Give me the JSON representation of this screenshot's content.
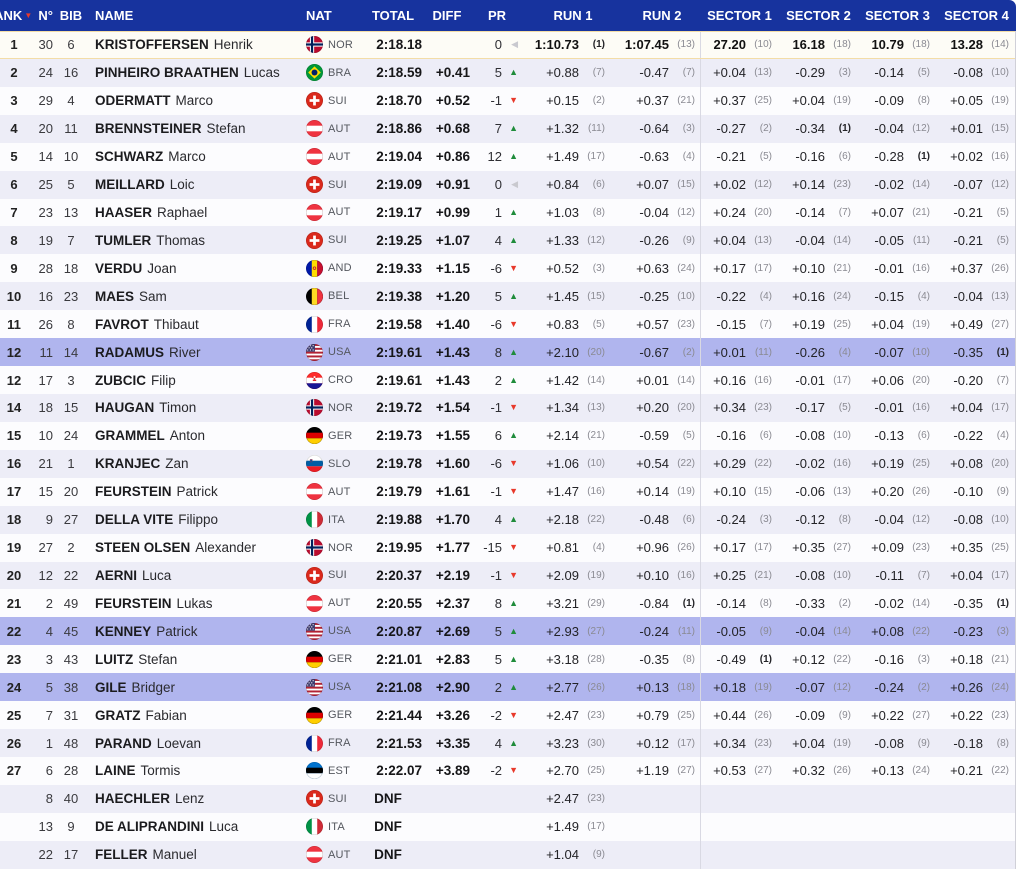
{
  "colors": {
    "header_bg": "#17339e",
    "header_text": "#ffffff",
    "row_even": "#ededf7",
    "row_odd": "#fcfcfe",
    "leader_bg": "#fdfcf6",
    "leader_border": "#f3dda7",
    "highlight_row": "#b0b5ee",
    "divider": "#d9d9e3",
    "arrow_up_green": "#1f8c3b",
    "arrow_down_red": "#e8392b",
    "arrow_same_grey": "#c9c9cf"
  },
  "header": {
    "rank": "RANK",
    "sort_icon": "▼",
    "n": "N°",
    "bib": "BIB",
    "name": "NAME",
    "nat": "NAT",
    "total": "TOTAL",
    "diff": "DIFF",
    "pr": "PR",
    "run1": "RUN 1",
    "run2": "RUN 2",
    "sector1": "SECTOR 1",
    "sector2": "SECTOR 2",
    "sector3": "SECTOR 3",
    "sector4": "SECTOR 4"
  },
  "pr_icons": {
    "up": "▲",
    "down": "▼",
    "same": "◀"
  },
  "rows": [
    {
      "rank": "1",
      "n": "30",
      "bib": "6",
      "surname": "KRISTOFFERSEN",
      "given": "Henrik",
      "nat": "NOR",
      "total": "2:18.18",
      "diff": "",
      "pr": "0",
      "pr_dir": "same",
      "leader": true,
      "cells": [
        [
          "1:10.73",
          "1"
        ],
        [
          "1:07.45",
          "13"
        ],
        [
          "27.20",
          "10"
        ],
        [
          "16.18",
          "18"
        ],
        [
          "10.79",
          "18"
        ],
        [
          "13.28",
          "14"
        ]
      ]
    },
    {
      "rank": "2",
      "n": "24",
      "bib": "16",
      "surname": "PINHEIRO BRAATHEN",
      "given": "Lucas",
      "nat": "BRA",
      "total": "2:18.59",
      "diff": "+0.41",
      "pr": "5",
      "pr_dir": "up",
      "cells": [
        [
          "+0.88",
          "7"
        ],
        [
          "-0.47",
          "7"
        ],
        [
          "+0.04",
          "13"
        ],
        [
          "-0.29",
          "3"
        ],
        [
          "-0.14",
          "5"
        ],
        [
          "-0.08",
          "10"
        ]
      ]
    },
    {
      "rank": "3",
      "n": "29",
      "bib": "4",
      "surname": "ODERMATT",
      "given": "Marco",
      "nat": "SUI",
      "total": "2:18.70",
      "diff": "+0.52",
      "pr": "-1",
      "pr_dir": "down",
      "cells": [
        [
          "+0.15",
          "2"
        ],
        [
          "+0.37",
          "21"
        ],
        [
          "+0.37",
          "25"
        ],
        [
          "+0.04",
          "19"
        ],
        [
          "-0.09",
          "8"
        ],
        [
          "+0.05",
          "19"
        ]
      ]
    },
    {
      "rank": "4",
      "n": "20",
      "bib": "11",
      "surname": "BRENNSTEINER",
      "given": "Stefan",
      "nat": "AUT",
      "total": "2:18.86",
      "diff": "+0.68",
      "pr": "7",
      "pr_dir": "up",
      "cells": [
        [
          "+1.32",
          "11"
        ],
        [
          "-0.64",
          "3"
        ],
        [
          "-0.27",
          "2"
        ],
        [
          "-0.34",
          "1"
        ],
        [
          "-0.04",
          "12"
        ],
        [
          "+0.01",
          "15"
        ]
      ]
    },
    {
      "rank": "5",
      "n": "14",
      "bib": "10",
      "surname": "SCHWARZ",
      "given": "Marco",
      "nat": "AUT",
      "total": "2:19.04",
      "diff": "+0.86",
      "pr": "12",
      "pr_dir": "up",
      "cells": [
        [
          "+1.49",
          "17"
        ],
        [
          "-0.63",
          "4"
        ],
        [
          "-0.21",
          "5"
        ],
        [
          "-0.16",
          "6"
        ],
        [
          "-0.28",
          "1"
        ],
        [
          "+0.02",
          "16"
        ]
      ]
    },
    {
      "rank": "6",
      "n": "25",
      "bib": "5",
      "surname": "MEILLARD",
      "given": "Loic",
      "nat": "SUI",
      "total": "2:19.09",
      "diff": "+0.91",
      "pr": "0",
      "pr_dir": "same",
      "cells": [
        [
          "+0.84",
          "6"
        ],
        [
          "+0.07",
          "15"
        ],
        [
          "+0.02",
          "12"
        ],
        [
          "+0.14",
          "23"
        ],
        [
          "-0.02",
          "14"
        ],
        [
          "-0.07",
          "12"
        ]
      ]
    },
    {
      "rank": "7",
      "n": "23",
      "bib": "13",
      "surname": "HAASER",
      "given": "Raphael",
      "nat": "AUT",
      "total": "2:19.17",
      "diff": "+0.99",
      "pr": "1",
      "pr_dir": "up",
      "cells": [
        [
          "+1.03",
          "8"
        ],
        [
          "-0.04",
          "12"
        ],
        [
          "+0.24",
          "20"
        ],
        [
          "-0.14",
          "7"
        ],
        [
          "+0.07",
          "21"
        ],
        [
          "-0.21",
          "5"
        ]
      ]
    },
    {
      "rank": "8",
      "n": "19",
      "bib": "7",
      "surname": "TUMLER",
      "given": "Thomas",
      "nat": "SUI",
      "total": "2:19.25",
      "diff": "+1.07",
      "pr": "4",
      "pr_dir": "up",
      "cells": [
        [
          "+1.33",
          "12"
        ],
        [
          "-0.26",
          "9"
        ],
        [
          "+0.04",
          "13"
        ],
        [
          "-0.04",
          "14"
        ],
        [
          "-0.05",
          "11"
        ],
        [
          "-0.21",
          "5"
        ]
      ]
    },
    {
      "rank": "9",
      "n": "28",
      "bib": "18",
      "surname": "VERDU",
      "given": "Joan",
      "nat": "AND",
      "total": "2:19.33",
      "diff": "+1.15",
      "pr": "-6",
      "pr_dir": "down",
      "cells": [
        [
          "+0.52",
          "3"
        ],
        [
          "+0.63",
          "24"
        ],
        [
          "+0.17",
          "17"
        ],
        [
          "+0.10",
          "21"
        ],
        [
          "-0.01",
          "16"
        ],
        [
          "+0.37",
          "26"
        ]
      ]
    },
    {
      "rank": "10",
      "n": "16",
      "bib": "23",
      "surname": "MAES",
      "given": "Sam",
      "nat": "BEL",
      "total": "2:19.38",
      "diff": "+1.20",
      "pr": "5",
      "pr_dir": "up",
      "cells": [
        [
          "+1.45",
          "15"
        ],
        [
          "-0.25",
          "10"
        ],
        [
          "-0.22",
          "4"
        ],
        [
          "+0.16",
          "24"
        ],
        [
          "-0.15",
          "4"
        ],
        [
          "-0.04",
          "13"
        ]
      ]
    },
    {
      "rank": "11",
      "n": "26",
      "bib": "8",
      "surname": "FAVROT",
      "given": "Thibaut",
      "nat": "FRA",
      "total": "2:19.58",
      "diff": "+1.40",
      "pr": "-6",
      "pr_dir": "down",
      "cells": [
        [
          "+0.83",
          "5"
        ],
        [
          "+0.57",
          "23"
        ],
        [
          "-0.15",
          "7"
        ],
        [
          "+0.19",
          "25"
        ],
        [
          "+0.04",
          "19"
        ],
        [
          "+0.49",
          "27"
        ]
      ]
    },
    {
      "rank": "12",
      "n": "11",
      "bib": "14",
      "surname": "RADAMUS",
      "given": "River",
      "nat": "USA",
      "total": "2:19.61",
      "diff": "+1.43",
      "pr": "8",
      "pr_dir": "up",
      "highlight": true,
      "cells": [
        [
          "+2.10",
          "20"
        ],
        [
          "-0.67",
          "2"
        ],
        [
          "+0.01",
          "11"
        ],
        [
          "-0.26",
          "4"
        ],
        [
          "-0.07",
          "10"
        ],
        [
          "-0.35",
          "1"
        ]
      ]
    },
    {
      "rank": "12",
      "n": "17",
      "bib": "3",
      "surname": "ZUBCIC",
      "given": "Filip",
      "nat": "CRO",
      "total": "2:19.61",
      "diff": "+1.43",
      "pr": "2",
      "pr_dir": "up",
      "cells": [
        [
          "+1.42",
          "14"
        ],
        [
          "+0.01",
          "14"
        ],
        [
          "+0.16",
          "16"
        ],
        [
          "-0.01",
          "17"
        ],
        [
          "+0.06",
          "20"
        ],
        [
          "-0.20",
          "7"
        ]
      ]
    },
    {
      "rank": "14",
      "n": "18",
      "bib": "15",
      "surname": "HAUGAN",
      "given": "Timon",
      "nat": "NOR",
      "total": "2:19.72",
      "diff": "+1.54",
      "pr": "-1",
      "pr_dir": "down",
      "cells": [
        [
          "+1.34",
          "13"
        ],
        [
          "+0.20",
          "20"
        ],
        [
          "+0.34",
          "23"
        ],
        [
          "-0.17",
          "5"
        ],
        [
          "-0.01",
          "16"
        ],
        [
          "+0.04",
          "17"
        ]
      ]
    },
    {
      "rank": "15",
      "n": "10",
      "bib": "24",
      "surname": "GRAMMEL",
      "given": "Anton",
      "nat": "GER",
      "total": "2:19.73",
      "diff": "+1.55",
      "pr": "6",
      "pr_dir": "up",
      "cells": [
        [
          "+2.14",
          "21"
        ],
        [
          "-0.59",
          "5"
        ],
        [
          "-0.16",
          "6"
        ],
        [
          "-0.08",
          "10"
        ],
        [
          "-0.13",
          "6"
        ],
        [
          "-0.22",
          "4"
        ]
      ]
    },
    {
      "rank": "16",
      "n": "21",
      "bib": "1",
      "surname": "KRANJEC",
      "given": "Zan",
      "nat": "SLO",
      "total": "2:19.78",
      "diff": "+1.60",
      "pr": "-6",
      "pr_dir": "down",
      "cells": [
        [
          "+1.06",
          "10"
        ],
        [
          "+0.54",
          "22"
        ],
        [
          "+0.29",
          "22"
        ],
        [
          "-0.02",
          "16"
        ],
        [
          "+0.19",
          "25"
        ],
        [
          "+0.08",
          "20"
        ]
      ]
    },
    {
      "rank": "17",
      "n": "15",
      "bib": "20",
      "surname": "FEURSTEIN",
      "given": "Patrick",
      "nat": "AUT",
      "total": "2:19.79",
      "diff": "+1.61",
      "pr": "-1",
      "pr_dir": "down",
      "cells": [
        [
          "+1.47",
          "16"
        ],
        [
          "+0.14",
          "19"
        ],
        [
          "+0.10",
          "15"
        ],
        [
          "-0.06",
          "13"
        ],
        [
          "+0.20",
          "26"
        ],
        [
          "-0.10",
          "9"
        ]
      ]
    },
    {
      "rank": "18",
      "n": "9",
      "bib": "27",
      "surname": "DELLA VITE",
      "given": "Filippo",
      "nat": "ITA",
      "total": "2:19.88",
      "diff": "+1.70",
      "pr": "4",
      "pr_dir": "up",
      "cells": [
        [
          "+2.18",
          "22"
        ],
        [
          "-0.48",
          "6"
        ],
        [
          "-0.24",
          "3"
        ],
        [
          "-0.12",
          "8"
        ],
        [
          "-0.04",
          "12"
        ],
        [
          "-0.08",
          "10"
        ]
      ]
    },
    {
      "rank": "19",
      "n": "27",
      "bib": "2",
      "surname": "STEEN OLSEN",
      "given": "Alexander",
      "nat": "NOR",
      "total": "2:19.95",
      "diff": "+1.77",
      "pr": "-15",
      "pr_dir": "down",
      "cells": [
        [
          "+0.81",
          "4"
        ],
        [
          "+0.96",
          "26"
        ],
        [
          "+0.17",
          "17"
        ],
        [
          "+0.35",
          "27"
        ],
        [
          "+0.09",
          "23"
        ],
        [
          "+0.35",
          "25"
        ]
      ]
    },
    {
      "rank": "20",
      "n": "12",
      "bib": "22",
      "surname": "AERNI",
      "given": "Luca",
      "nat": "SUI",
      "total": "2:20.37",
      "diff": "+2.19",
      "pr": "-1",
      "pr_dir": "down",
      "cells": [
        [
          "+2.09",
          "19"
        ],
        [
          "+0.10",
          "16"
        ],
        [
          "+0.25",
          "21"
        ],
        [
          "-0.08",
          "10"
        ],
        [
          "-0.11",
          "7"
        ],
        [
          "+0.04",
          "17"
        ]
      ]
    },
    {
      "rank": "21",
      "n": "2",
      "bib": "49",
      "surname": "FEURSTEIN",
      "given": "Lukas",
      "nat": "AUT",
      "total": "2:20.55",
      "diff": "+2.37",
      "pr": "8",
      "pr_dir": "up",
      "cells": [
        [
          "+3.21",
          "29"
        ],
        [
          "-0.84",
          "1"
        ],
        [
          "-0.14",
          "8"
        ],
        [
          "-0.33",
          "2"
        ],
        [
          "-0.02",
          "14"
        ],
        [
          "-0.35",
          "1"
        ]
      ]
    },
    {
      "rank": "22",
      "n": "4",
      "bib": "45",
      "surname": "KENNEY",
      "given": "Patrick",
      "nat": "USA",
      "total": "2:20.87",
      "diff": "+2.69",
      "pr": "5",
      "pr_dir": "up",
      "highlight": true,
      "cells": [
        [
          "+2.93",
          "27"
        ],
        [
          "-0.24",
          "11"
        ],
        [
          "-0.05",
          "9"
        ],
        [
          "-0.04",
          "14"
        ],
        [
          "+0.08",
          "22"
        ],
        [
          "-0.23",
          "3"
        ]
      ]
    },
    {
      "rank": "23",
      "n": "3",
      "bib": "43",
      "surname": "LUITZ",
      "given": "Stefan",
      "nat": "GER",
      "total": "2:21.01",
      "diff": "+2.83",
      "pr": "5",
      "pr_dir": "up",
      "cells": [
        [
          "+3.18",
          "28"
        ],
        [
          "-0.35",
          "8"
        ],
        [
          "-0.49",
          "1"
        ],
        [
          "+0.12",
          "22"
        ],
        [
          "-0.16",
          "3"
        ],
        [
          "+0.18",
          "21"
        ]
      ]
    },
    {
      "rank": "24",
      "n": "5",
      "bib": "38",
      "surname": "GILE",
      "given": "Bridger",
      "nat": "USA",
      "total": "2:21.08",
      "diff": "+2.90",
      "pr": "2",
      "pr_dir": "up",
      "highlight": true,
      "cells": [
        [
          "+2.77",
          "26"
        ],
        [
          "+0.13",
          "18"
        ],
        [
          "+0.18",
          "19"
        ],
        [
          "-0.07",
          "12"
        ],
        [
          "-0.24",
          "2"
        ],
        [
          "+0.26",
          "24"
        ]
      ]
    },
    {
      "rank": "25",
      "n": "7",
      "bib": "31",
      "surname": "GRATZ",
      "given": "Fabian",
      "nat": "GER",
      "total": "2:21.44",
      "diff": "+3.26",
      "pr": "-2",
      "pr_dir": "down",
      "cells": [
        [
          "+2.47",
          "23"
        ],
        [
          "+0.79",
          "25"
        ],
        [
          "+0.44",
          "26"
        ],
        [
          "-0.09",
          "9"
        ],
        [
          "+0.22",
          "27"
        ],
        [
          "+0.22",
          "23"
        ]
      ]
    },
    {
      "rank": "26",
      "n": "1",
      "bib": "48",
      "surname": "PARAND",
      "given": "Loevan",
      "nat": "FRA",
      "total": "2:21.53",
      "diff": "+3.35",
      "pr": "4",
      "pr_dir": "up",
      "cells": [
        [
          "+3.23",
          "30"
        ],
        [
          "+0.12",
          "17"
        ],
        [
          "+0.34",
          "23"
        ],
        [
          "+0.04",
          "19"
        ],
        [
          "-0.08",
          "9"
        ],
        [
          "-0.18",
          "8"
        ]
      ]
    },
    {
      "rank": "27",
      "n": "6",
      "bib": "28",
      "surname": "LAINE",
      "given": "Tormis",
      "nat": "EST",
      "total": "2:22.07",
      "diff": "+3.89",
      "pr": "-2",
      "pr_dir": "down",
      "cells": [
        [
          "+2.70",
          "25"
        ],
        [
          "+1.19",
          "27"
        ],
        [
          "+0.53",
          "27"
        ],
        [
          "+0.32",
          "26"
        ],
        [
          "+0.13",
          "24"
        ],
        [
          "+0.21",
          "22"
        ]
      ]
    },
    {
      "rank": "",
      "n": "8",
      "bib": "40",
      "surname": "HAECHLER",
      "given": "Lenz",
      "nat": "SUI",
      "total": "DNF",
      "diff": "",
      "pr": "",
      "pr_dir": "",
      "dnf": true,
      "cells": [
        [
          "+2.47",
          "23"
        ],
        null,
        null,
        null,
        null,
        null
      ]
    },
    {
      "rank": "",
      "n": "13",
      "bib": "9",
      "surname": "DE ALIPRANDINI",
      "given": "Luca",
      "nat": "ITA",
      "total": "DNF",
      "diff": "",
      "pr": "",
      "pr_dir": "",
      "dnf": true,
      "cells": [
        [
          "+1.49",
          "17"
        ],
        null,
        null,
        null,
        null,
        null
      ]
    },
    {
      "rank": "",
      "n": "22",
      "bib": "17",
      "surname": "FELLER",
      "given": "Manuel",
      "nat": "AUT",
      "total": "DNF",
      "diff": "",
      "pr": "",
      "pr_dir": "",
      "dnf": true,
      "cells": [
        [
          "+1.04",
          "9"
        ],
        null,
        null,
        null,
        null,
        null
      ]
    }
  ]
}
